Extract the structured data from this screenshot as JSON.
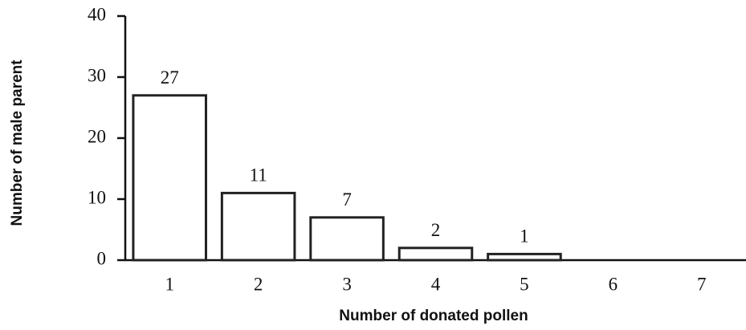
{
  "chart_data": {
    "type": "bar",
    "x_label": "Number of donated pollen",
    "y_label": "Number of male parent",
    "categories": [
      "1",
      "2",
      "3",
      "4",
      "5",
      "6",
      "7"
    ],
    "values": [
      27,
      11,
      7,
      2,
      1,
      0,
      0
    ],
    "value_labels": [
      "27",
      "11",
      "7",
      "2",
      "1",
      null,
      null
    ],
    "color": "#ffffff",
    "ylim": [
      0,
      40
    ],
    "yticks": [
      0,
      10,
      20,
      30,
      40
    ],
    "grid": false
  }
}
